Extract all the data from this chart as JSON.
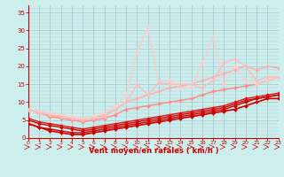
{
  "xlabel": "Vent moyen/en rafales ( km/h )",
  "bg_color": "#cceeed",
  "grid_color": "#aacccc",
  "text_color": "#cc0000",
  "xlim": [
    0,
    23
  ],
  "ylim": [
    0,
    37
  ],
  "yticks": [
    0,
    5,
    10,
    15,
    20,
    25,
    30,
    35
  ],
  "lines": [
    {
      "x": [
        0,
        1,
        2,
        3,
        4,
        5,
        6,
        7,
        8,
        9,
        10,
        11,
        12,
        13,
        14,
        15,
        16,
        17,
        18,
        19,
        20,
        21,
        22,
        23
      ],
      "y": [
        4,
        3,
        2,
        1.5,
        1,
        1,
        1.5,
        2,
        2.5,
        3,
        3.5,
        4,
        4.5,
        5,
        5.5,
        6,
        6.5,
        7,
        7.5,
        8,
        9,
        10,
        11,
        11
      ],
      "color": "#cc0000",
      "lw": 1.2,
      "marker": "D",
      "ms": 2.0
    },
    {
      "x": [
        0,
        1,
        2,
        3,
        4,
        5,
        6,
        7,
        8,
        9,
        10,
        11,
        12,
        13,
        14,
        15,
        16,
        17,
        18,
        19,
        20,
        21,
        22,
        23
      ],
      "y": [
        4,
        3,
        2.5,
        2,
        1.5,
        1.5,
        2,
        2.5,
        3,
        3.5,
        4,
        4.5,
        5,
        5.5,
        6,
        6.5,
        7,
        7.5,
        8,
        9,
        10,
        11,
        11.5,
        12
      ],
      "color": "#cc0000",
      "lw": 1.0,
      "marker": "D",
      "ms": 2.0
    },
    {
      "x": [
        0,
        1,
        2,
        3,
        4,
        5,
        6,
        7,
        8,
        9,
        10,
        11,
        12,
        13,
        14,
        15,
        16,
        17,
        18,
        19,
        20,
        21,
        22,
        23
      ],
      "y": [
        5,
        4,
        3.5,
        3,
        2.5,
        2,
        2.5,
        3,
        3.5,
        4,
        4.5,
        5,
        5.5,
        6,
        6.5,
        7,
        7.5,
        8,
        8.5,
        9.5,
        10.5,
        11,
        11.5,
        12
      ],
      "color": "#cc0000",
      "lw": 1.0,
      "marker": "D",
      "ms": 1.8
    },
    {
      "x": [
        0,
        1,
        2,
        3,
        4,
        5,
        6,
        7,
        8,
        9,
        10,
        11,
        12,
        13,
        14,
        15,
        16,
        17,
        18,
        19,
        20,
        21,
        22,
        23
      ],
      "y": [
        5.5,
        4.5,
        4,
        3.5,
        3,
        2.5,
        3,
        3.5,
        4,
        4.5,
        5,
        5.5,
        6,
        6.5,
        7,
        7.5,
        8,
        8.5,
        9,
        10,
        11,
        11.5,
        12,
        12.5
      ],
      "color": "#dd1111",
      "lw": 1.0,
      "marker": "D",
      "ms": 1.8
    },
    {
      "x": [
        0,
        1,
        2,
        3,
        4,
        5,
        6,
        7,
        8,
        9,
        10,
        11,
        12,
        13,
        14,
        15,
        16,
        17,
        18,
        19,
        20,
        21,
        22,
        23
      ],
      "y": [
        8,
        7,
        6,
        5.5,
        5,
        4.5,
        5,
        5.5,
        6.5,
        8,
        8.5,
        9,
        9.5,
        10,
        10.5,
        11,
        12,
        13,
        13.5,
        14,
        14.5,
        15,
        16,
        17
      ],
      "color": "#ff8888",
      "lw": 1.0,
      "marker": "D",
      "ms": 2.0
    },
    {
      "x": [
        0,
        1,
        2,
        3,
        4,
        5,
        6,
        7,
        8,
        9,
        10,
        11,
        12,
        13,
        14,
        15,
        16,
        17,
        18,
        19,
        20,
        21,
        22,
        23
      ],
      "y": [
        8,
        7,
        6.5,
        6,
        5.5,
        5,
        5.5,
        6.5,
        8,
        10,
        11,
        12,
        13,
        14,
        14.5,
        15,
        16,
        17,
        18,
        19,
        20,
        19,
        20,
        19.5
      ],
      "color": "#ffaaaa",
      "lw": 1.0,
      "marker": "D",
      "ms": 2.0
    },
    {
      "x": [
        0,
        1,
        2,
        3,
        4,
        5,
        6,
        7,
        8,
        9,
        10,
        11,
        12,
        13,
        14,
        15,
        16,
        17,
        18,
        19,
        20,
        21,
        22,
        23
      ],
      "y": [
        8,
        7.5,
        7,
        6.5,
        6,
        5.5,
        6,
        7,
        9,
        12,
        24,
        31,
        15.5,
        16,
        14,
        14,
        21,
        28,
        15,
        20,
        16,
        15,
        16,
        17
      ],
      "color": "#ffcccc",
      "lw": 1.0,
      "marker": "D",
      "ms": 2.0
    },
    {
      "x": [
        0,
        1,
        2,
        3,
        4,
        5,
        6,
        7,
        8,
        9,
        10,
        11,
        12,
        13,
        14,
        15,
        16,
        17,
        18,
        19,
        20,
        21,
        22,
        23
      ],
      "y": [
        8,
        7,
        6.5,
        6,
        5.5,
        5,
        5.5,
        6,
        8,
        10,
        15,
        12,
        15.5,
        15,
        15,
        15,
        14,
        16,
        21,
        22,
        20,
        16,
        17,
        17
      ],
      "color": "#ffbbbb",
      "lw": 1.0,
      "marker": "D",
      "ms": 2.0
    }
  ]
}
